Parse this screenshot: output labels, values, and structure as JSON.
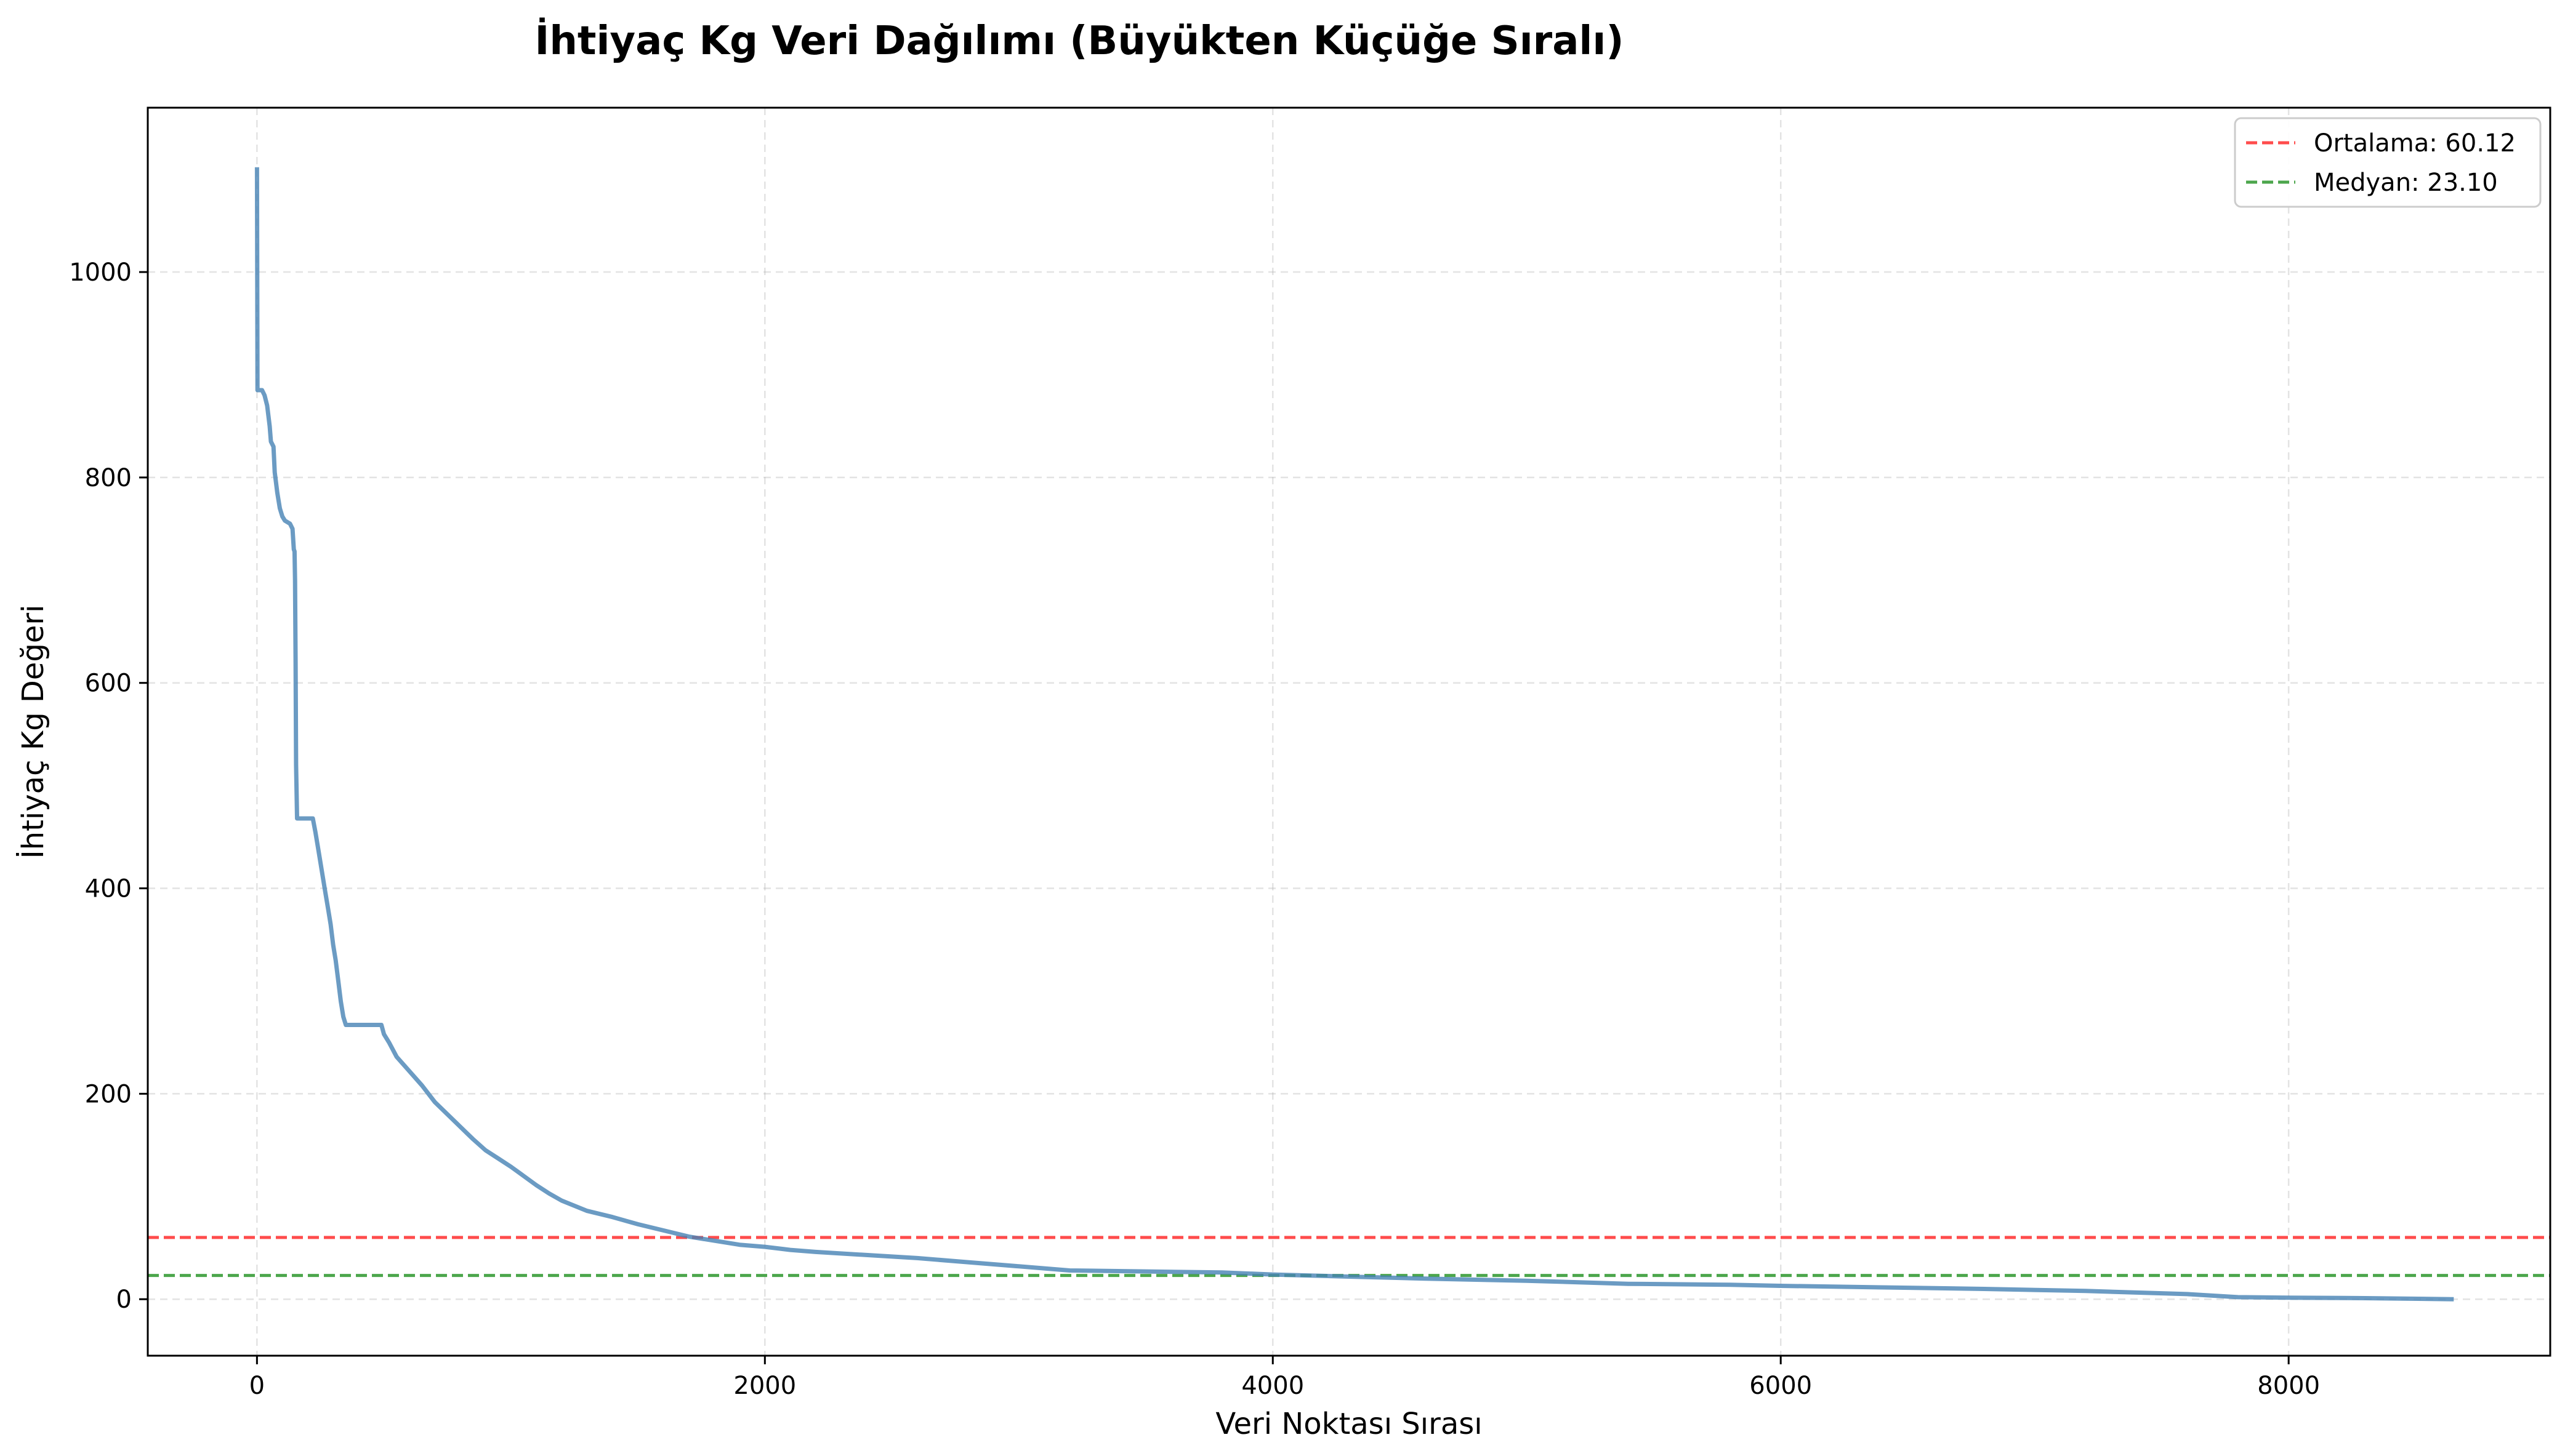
{
  "chart_data": {
    "type": "line",
    "title": "İhtiyaç Kg Veri Dağılımı (Büyükten Küçüğe Sıralı)",
    "xlabel": "Veri Noktası Sırası",
    "ylabel": "İhtiyaç Kg Değeri",
    "xlim": [
      -430,
      9030
    ],
    "ylim": [
      -55,
      1160
    ],
    "xticks": [
      0,
      2000,
      4000,
      6000,
      8000
    ],
    "yticks": [
      0,
      200,
      400,
      600,
      800,
      1000
    ],
    "grid": true,
    "legend_position": "top-right",
    "colors": {
      "series": "#4682b4",
      "mean": "#ff0000",
      "median": "#008000"
    },
    "reference_lines": [
      {
        "label": "Ortalama: 60.12",
        "y": 60.12,
        "color": "#ff0000",
        "style": "dashed"
      },
      {
        "label": "Medyan: 23.10",
        "y": 23.1,
        "color": "#008000",
        "style": "dashed"
      }
    ],
    "series": [
      {
        "points": [
          [
            0,
            1102
          ],
          [
            2,
            885
          ],
          [
            20,
            885
          ],
          [
            30,
            880
          ],
          [
            40,
            870
          ],
          [
            50,
            850
          ],
          [
            55,
            835
          ],
          [
            65,
            830
          ],
          [
            70,
            805
          ],
          [
            80,
            785
          ],
          [
            90,
            770
          ],
          [
            100,
            762
          ],
          [
            110,
            758
          ],
          [
            130,
            755
          ],
          [
            140,
            750
          ],
          [
            145,
            730
          ],
          [
            148,
            728
          ],
          [
            150,
            700
          ],
          [
            152,
            620
          ],
          [
            154,
            520
          ],
          [
            158,
            468
          ],
          [
            180,
            468
          ],
          [
            220,
            468
          ],
          [
            230,
            455
          ],
          [
            240,
            440
          ],
          [
            250,
            425
          ],
          [
            260,
            410
          ],
          [
            270,
            395
          ],
          [
            280,
            380
          ],
          [
            290,
            365
          ],
          [
            300,
            345
          ],
          [
            310,
            330
          ],
          [
            320,
            310
          ],
          [
            330,
            290
          ],
          [
            340,
            275
          ],
          [
            350,
            267
          ],
          [
            490,
            267
          ],
          [
            500,
            258
          ],
          [
            520,
            250
          ],
          [
            550,
            236
          ],
          [
            600,
            222
          ],
          [
            650,
            208
          ],
          [
            700,
            192
          ],
          [
            750,
            180
          ],
          [
            800,
            168
          ],
          [
            850,
            156
          ],
          [
            900,
            145
          ],
          [
            950,
            137
          ],
          [
            1000,
            129
          ],
          [
            1050,
            120
          ],
          [
            1100,
            111
          ],
          [
            1150,
            103
          ],
          [
            1200,
            96
          ],
          [
            1300,
            86
          ],
          [
            1400,
            80
          ],
          [
            1500,
            73
          ],
          [
            1600,
            67
          ],
          [
            1700,
            61
          ],
          [
            1800,
            57
          ],
          [
            1900,
            53
          ],
          [
            2000,
            51
          ],
          [
            2100,
            48
          ],
          [
            2200,
            46
          ],
          [
            2400,
            43
          ],
          [
            2600,
            40
          ],
          [
            2800,
            36
          ],
          [
            3000,
            32
          ],
          [
            3200,
            28
          ],
          [
            3500,
            27
          ],
          [
            3800,
            26
          ],
          [
            4000,
            24
          ],
          [
            4300,
            22
          ],
          [
            4600,
            20
          ],
          [
            5000,
            18
          ],
          [
            5400,
            15
          ],
          [
            5800,
            14
          ],
          [
            6000,
            13
          ],
          [
            6400,
            11.5
          ],
          [
            6800,
            10
          ],
          [
            7200,
            8
          ],
          [
            7600,
            5
          ],
          [
            7800,
            2
          ],
          [
            8000,
            1.5
          ],
          [
            8300,
            1
          ],
          [
            8650,
            0
          ]
        ]
      }
    ]
  }
}
